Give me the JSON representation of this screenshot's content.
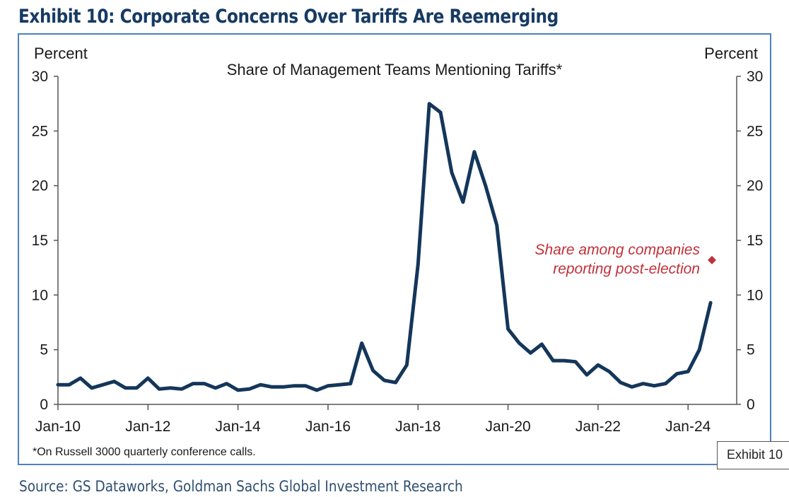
{
  "exhibit_title": "Exhibit 10: Corporate Concerns Over Tariffs Are Reemerging",
  "source": "Source: GS Dataworks, Goldman Sachs Global Investment Research",
  "tag_label": "Exhibit 10",
  "chart_data": {
    "type": "line",
    "title": "Share of Management Teams Mentioning Tariffs*",
    "ylabel_left": "Percent",
    "ylabel_right": "Percent",
    "footnote": "*On Russell 3000 quarterly conference calls.",
    "ylim": [
      0,
      30
    ],
    "yticks": [
      0,
      5,
      10,
      15,
      20,
      25,
      30
    ],
    "xlim": [
      2010.0,
      2025.08
    ],
    "xticks": [
      {
        "x": 2010,
        "label": "Jan-10"
      },
      {
        "x": 2012,
        "label": "Jan-12"
      },
      {
        "x": 2014,
        "label": "Jan-14"
      },
      {
        "x": 2016,
        "label": "Jan-16"
      },
      {
        "x": 2018,
        "label": "Jan-18"
      },
      {
        "x": 2020,
        "label": "Jan-20"
      },
      {
        "x": 2022,
        "label": "Jan-22"
      },
      {
        "x": 2024,
        "label": "Jan-24"
      }
    ],
    "grid": false,
    "line_color": "#14365a",
    "series": [
      {
        "x": [
          2010.0,
          2010.25,
          2010.5,
          2010.75,
          2011.0,
          2011.25,
          2011.5,
          2011.75,
          2012.0,
          2012.25,
          2012.5,
          2012.75,
          2013.0,
          2013.25,
          2013.5,
          2013.75,
          2014.0,
          2014.25,
          2014.5,
          2014.75,
          2015.0,
          2015.25,
          2015.5,
          2015.75,
          2016.0,
          2016.25,
          2016.5,
          2016.75,
          2017.0,
          2017.25,
          2017.5,
          2017.75,
          2018.0,
          2018.25,
          2018.5,
          2018.75,
          2019.0,
          2019.25,
          2019.5,
          2019.75,
          2020.0,
          2020.25,
          2020.5,
          2020.75,
          2021.0,
          2021.25,
          2021.5,
          2021.75,
          2022.0,
          2022.25,
          2022.5,
          2022.75,
          2023.0,
          2023.25,
          2023.5,
          2023.75,
          2024.0,
          2024.25,
          2024.5
        ],
        "values": [
          1.8,
          1.8,
          2.4,
          1.5,
          1.8,
          2.1,
          1.5,
          1.5,
          2.4,
          1.4,
          1.5,
          1.4,
          1.9,
          1.9,
          1.5,
          1.9,
          1.3,
          1.4,
          1.8,
          1.6,
          1.6,
          1.7,
          1.7,
          1.3,
          1.7,
          1.8,
          1.9,
          5.6,
          3.1,
          2.2,
          2.0,
          3.6,
          12.8,
          27.5,
          26.7,
          21.2,
          18.5,
          23.1,
          20.0,
          16.4,
          6.9,
          5.6,
          4.7,
          5.5,
          4.0,
          4.0,
          3.9,
          2.7,
          3.6,
          3.0,
          2.0,
          1.6,
          1.9,
          1.7,
          1.9,
          2.8,
          3.0,
          5.0,
          9.3
        ]
      }
    ],
    "point": {
      "x": 2024.53,
      "y": 13.2,
      "color": "#c0313a"
    },
    "annotation": {
      "line1": "Share among companies",
      "line2": "reporting post-election",
      "color": "#c0313a"
    }
  }
}
